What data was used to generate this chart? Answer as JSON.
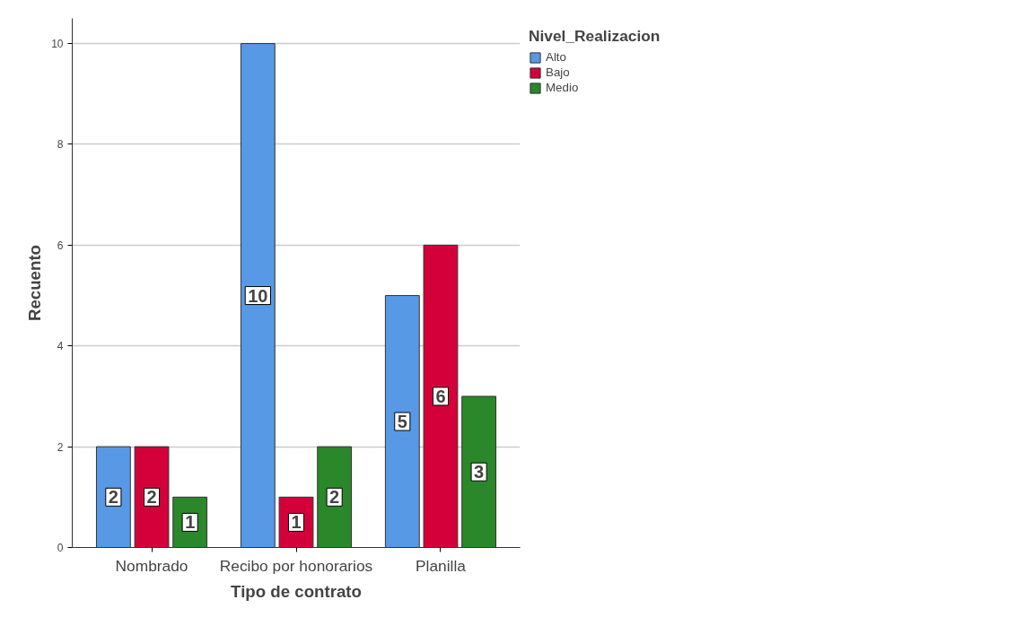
{
  "chart_data": {
    "type": "bar",
    "xlabel": "Tipo de contrato",
    "ylabel": "Recuento",
    "legend_title": "Nivel_Realizacion",
    "categories": [
      "Nombrado",
      "Recibo por honorarios",
      "Planilla"
    ],
    "series": [
      {
        "name": "Alto",
        "color": "#5799e4",
        "values": [
          2,
          10,
          5
        ]
      },
      {
        "name": "Bajo",
        "color": "#d4003a",
        "values": [
          2,
          1,
          6
        ]
      },
      {
        "name": "Medio",
        "color": "#2a872a",
        "values": [
          1,
          2,
          3
        ]
      }
    ],
    "ylim": [
      0,
      10.5
    ],
    "yticks": [
      0,
      2,
      4,
      6,
      8,
      10
    ],
    "grid": "y",
    "legend": "right",
    "data_labels": true
  }
}
